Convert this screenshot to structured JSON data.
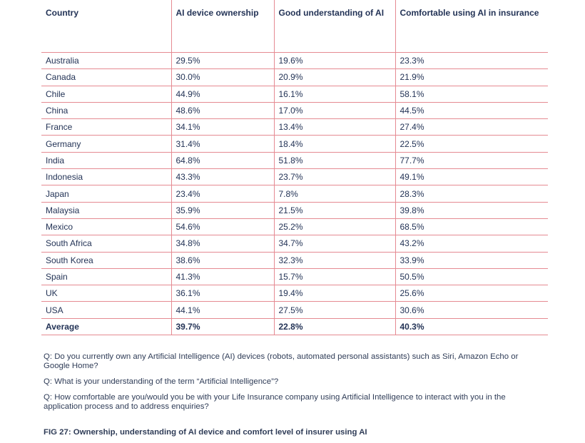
{
  "table": {
    "headers": [
      "Country",
      "AI device ownership",
      "Good understanding of AI",
      "Comfortable using AI in insurance"
    ],
    "rows": [
      [
        "Australia",
        "29.5%",
        "19.6%",
        "23.3%"
      ],
      [
        "Canada",
        "30.0%",
        "20.9%",
        "21.9%"
      ],
      [
        "Chile",
        "44.9%",
        "16.1%",
        "58.1%"
      ],
      [
        "China",
        "48.6%",
        "17.0%",
        "44.5%"
      ],
      [
        "France",
        "34.1%",
        "13.4%",
        "27.4%"
      ],
      [
        "Germany",
        "31.4%",
        "18.4%",
        "22.5%"
      ],
      [
        "India",
        "64.8%",
        "51.8%",
        "77.7%"
      ],
      [
        "Indonesia",
        "43.3%",
        "23.7%",
        "49.1%"
      ],
      [
        "Japan",
        "23.4%",
        "7.8%",
        "28.3%"
      ],
      [
        "Malaysia",
        "35.9%",
        "21.5%",
        "39.8%"
      ],
      [
        "Mexico",
        "54.6%",
        "25.2%",
        "68.5%"
      ],
      [
        "South Africa",
        "34.8%",
        "34.7%",
        "43.2%"
      ],
      [
        "South Korea",
        "38.6%",
        "32.3%",
        "33.9%"
      ],
      [
        "Spain",
        "41.3%",
        "15.7%",
        "50.5%"
      ],
      [
        "UK",
        "36.1%",
        "19.4%",
        "25.6%"
      ],
      [
        "USA",
        "44.1%",
        "27.5%",
        "30.6%"
      ]
    ],
    "average": [
      "Average",
      "39.7%",
      "22.8%",
      "40.3%"
    ]
  },
  "notes": [
    "Q: Do you currently own any Artificial Intelligence (AI) devices (robots, automated personal assistants) such as Siri, Amazon Echo or Google Home?",
    "Q: What is your understanding of the term “Artificial Intelligence”?",
    "Q: How comfortable are you/would you be with your Life Insurance company using Artificial Intelligence to interact with you in the application process and to address enquiries?"
  ],
  "caption": "FIG 27: Ownership, understanding of AI device and comfort level of insurer using AI",
  "colors": {
    "rule": "#e58a92",
    "text": "#233356"
  }
}
